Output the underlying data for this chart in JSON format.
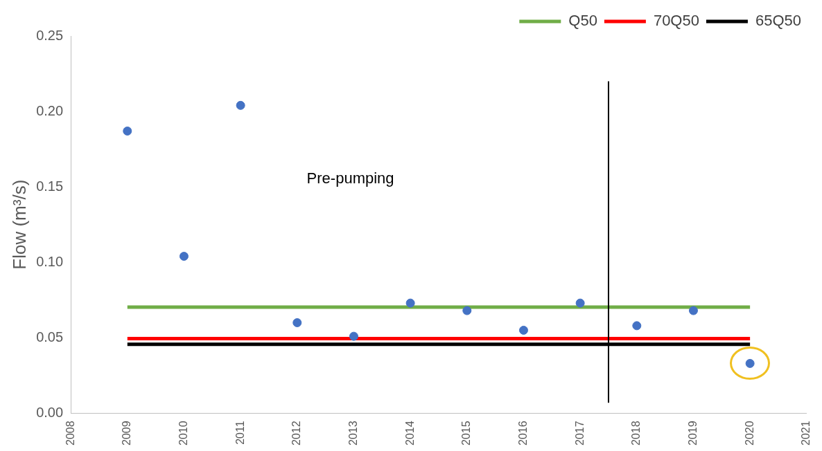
{
  "chart_data": {
    "type": "scatter",
    "ylabel": "Flow (m³/s)",
    "x": [
      2009,
      2010,
      2011,
      2012,
      2013,
      2014,
      2015,
      2016,
      2017,
      2018,
      2019,
      2020
    ],
    "series": [
      {
        "color": "#4472c4",
        "marker": "circle",
        "values": [
          0.187,
          0.104,
          0.204,
          0.06,
          0.051,
          0.073,
          0.068,
          0.055,
          0.073,
          0.058,
          0.068,
          0.033
        ]
      },
      {
        "type": "line",
        "name": "Q50",
        "color": "#70ad47",
        "values": [
          0.0703,
          0.0703,
          0.0703,
          0.0703,
          0.0703,
          0.0703,
          0.0703,
          0.0703,
          0.0703,
          0.0703,
          0.0703,
          0.0703
        ]
      },
      {
        "type": "line",
        "name": "70Q50",
        "color": "#ff0000",
        "values": [
          0.0495,
          0.0495,
          0.0495,
          0.0495,
          0.0495,
          0.0495,
          0.0495,
          0.0495,
          0.0495,
          0.0495,
          0.0495,
          0.0495
        ]
      },
      {
        "type": "line",
        "name": "65Q50",
        "color": "#000000",
        "values": [
          0.0457,
          0.0457,
          0.0457,
          0.0457,
          0.0457,
          0.0457,
          0.0457,
          0.0457,
          0.0457,
          0.0457,
          0.0457,
          0.0457
        ]
      }
    ],
    "ref_lines": [
      {
        "axis": "x",
        "value": 2017.5,
        "color": "#000000"
      }
    ],
    "annotations": [
      "Pre-pumping"
    ],
    "xlim": [
      2008,
      2021
    ],
    "xticks": [
      2008,
      2009,
      2010,
      2011,
      2012,
      2013,
      2014,
      2015,
      2016,
      2017,
      2018,
      2019,
      2020,
      2021
    ],
    "ylim": [
      0,
      0.25
    ],
    "yticks": [
      {
        "value": 0,
        "label": "0.00"
      },
      {
        "value": 0.05,
        "label": "0.05"
      },
      {
        "value": 0.1,
        "label": "0.10"
      },
      {
        "value": 0.15,
        "label": "0.15"
      },
      {
        "value": 0.2,
        "label": "0.20"
      },
      {
        "value": 0.25,
        "label": "0.25"
      }
    ],
    "legend": "top right",
    "grid": false
  }
}
